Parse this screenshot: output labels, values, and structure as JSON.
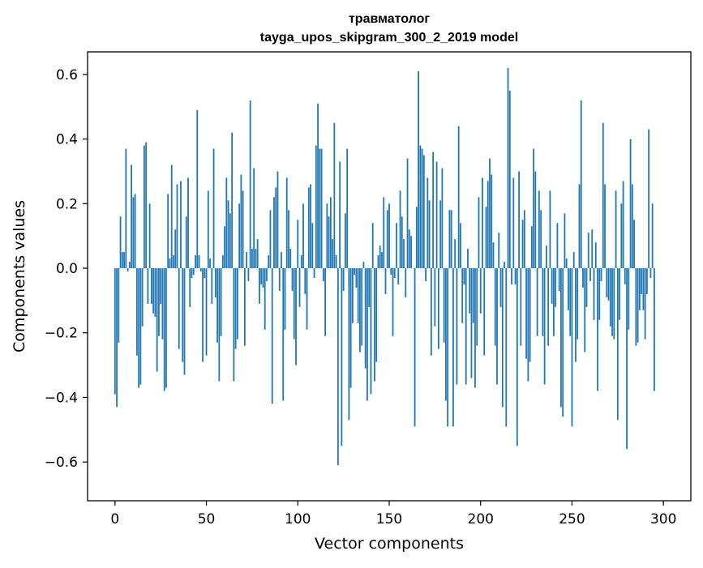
{
  "chart_data": {
    "type": "bar",
    "title": "травматолог",
    "subtitle": "tayga_upos_skipgram_300_2_2019 model",
    "xlabel": "Vector components",
    "ylabel": "Components values",
    "xlim": [
      -15,
      315
    ],
    "ylim": [
      -0.72,
      0.67
    ],
    "xticks": [
      0,
      50,
      100,
      150,
      200,
      250,
      300
    ],
    "yticks": [
      -0.6,
      -0.4,
      -0.2,
      0.0,
      0.2,
      0.4,
      0.6
    ],
    "ytick_labels": [
      "−0.6",
      "−0.4",
      "−0.2",
      "0.0",
      "0.2",
      "0.4",
      "0.6"
    ],
    "xtick_labels": [
      "0",
      "50",
      "100",
      "150",
      "200",
      "250",
      "300"
    ],
    "bar_color": "#1f77b4",
    "grid": false,
    "legend": "none",
    "values": [
      -0.39,
      -0.43,
      -0.23,
      0.16,
      0.05,
      0.05,
      0.37,
      -0.01,
      0.02,
      0.32,
      0.22,
      0.23,
      -0.27,
      -0.37,
      -0.36,
      -0.18,
      0.38,
      0.39,
      -0.11,
      0.2,
      -0.11,
      -0.14,
      -0.15,
      -0.32,
      -0.21,
      -0.11,
      -0.22,
      -0.38,
      -0.37,
      0.23,
      0.03,
      0.32,
      0.04,
      0.12,
      0.26,
      -0.25,
      0.27,
      -0.29,
      -0.33,
      0.16,
      0.28,
      -0.12,
      -0.03,
      -0.02,
      0.04,
      0.49,
      0.04,
      -0.01,
      -0.29,
      -0.03,
      -0.27,
      0.24,
      0.03,
      -0.11,
      0.37,
      -0.09,
      -0.23,
      -0.35,
      -0.21,
      0.04,
      0.13,
      0.28,
      0.21,
      0.17,
      0.42,
      -0.35,
      -0.25,
      -0.22,
      0.2,
      0.29,
      0.24,
      -0.24,
      0.05,
      -0.04,
      0.52,
      0.06,
      0.31,
      0.06,
      0.09,
      -0.11,
      -0.05,
      -0.06,
      -0.19,
      -0.04,
      0.04,
      0.18,
      -0.42,
      0.22,
      0.25,
      0.3,
      -0.07,
      0.05,
      -0.41,
      -0.19,
      0.28,
      0.18,
      0.06,
      -0.07,
      -0.22,
      -0.3,
      0.15,
      -0.12,
      0.04,
      0.2,
      -0.08,
      -0.19,
      0.25,
      0.26,
      0.14,
      -0.03,
      0.38,
      0.51,
      0.37,
      0.37,
      -0.04,
      -0.21,
      0.2,
      0.16,
      0.22,
      0.09,
      0.45,
      0.04,
      -0.61,
      0.33,
      -0.55,
      -0.07,
      0.17,
      0.37,
      -0.47,
      -0.37,
      -0.17,
      -0.02,
      -0.06,
      -0.17,
      -0.26,
      -0.24,
      0.02,
      -0.31,
      -0.41,
      -0.12,
      -0.39,
      0.14,
      -0.35,
      -0.29,
      0.04,
      0.07,
      0.05,
      0.22,
      -0.08,
      0.18,
      0.2,
      -0.02,
      -0.21,
      -0.03,
      0.14,
      -0.05,
      0.24,
      0.16,
      0.09,
      -0.09,
      0.34,
      0.12,
      0.1,
      0.0,
      -0.49,
      0.19,
      0.61,
      0.38,
      0.37,
      0.35,
      -0.04,
      0.28,
      0.21,
      -0.27,
      0.36,
      -0.18,
      0.33,
      -0.25,
      0.21,
      0.31,
      -0.23,
      -0.41,
      -0.49,
      0.18,
      0.18,
      -0.49,
      0.09,
      -0.36,
      0.44,
      0.14,
      -0.17,
      -0.05,
      -0.36,
      0.06,
      -0.14,
      -0.34,
      -0.17,
      -0.37,
      -0.24,
      0.22,
      -0.14,
      0.28,
      -0.27,
      0.19,
      0.27,
      0.34,
      0.29,
      0.08,
      -0.24,
      -0.36,
      0.11,
      -0.12,
      -0.43,
      0.02,
      -0.49,
      0.62,
      0.55,
      -0.05,
      0.28,
      -0.05,
      -0.55,
      0.3,
      -0.24,
      0.15,
      0.18,
      -0.28,
      -0.35,
      -0.29,
      0.13,
      0.37,
      0.3,
      -0.21,
      0.24,
      0.18,
      -0.21,
      -0.36,
      0.07,
      -0.24,
      0.24,
      -0.11,
      -0.21,
      -0.12,
      0.14,
      -0.07,
      -0.43,
      -0.46,
      0.17,
      0.03,
      -0.13,
      -0.21,
      -0.49,
      0.05,
      -0.29,
      -0.22,
      0.26,
      0.52,
      -0.06,
      -0.26,
      -0.12,
      0.11,
      -0.04,
      0.12,
      -0.16,
      0.08,
      -0.38,
      -0.16,
      -0.04,
      0.45,
      0.26,
      -0.09,
      -0.1,
      -0.18,
      -0.21,
      -0.22,
      0.24,
      -0.47,
      -0.16,
      0.2,
      0.27,
      -0.05,
      -0.56,
      -0.19,
      0.4,
      0.26,
      0.15,
      -0.24,
      -0.23,
      -0.13,
      -0.08,
      -0.13,
      -0.22,
      -0.08,
      0.43,
      -0.03,
      0.2,
      -0.38
    ]
  }
}
